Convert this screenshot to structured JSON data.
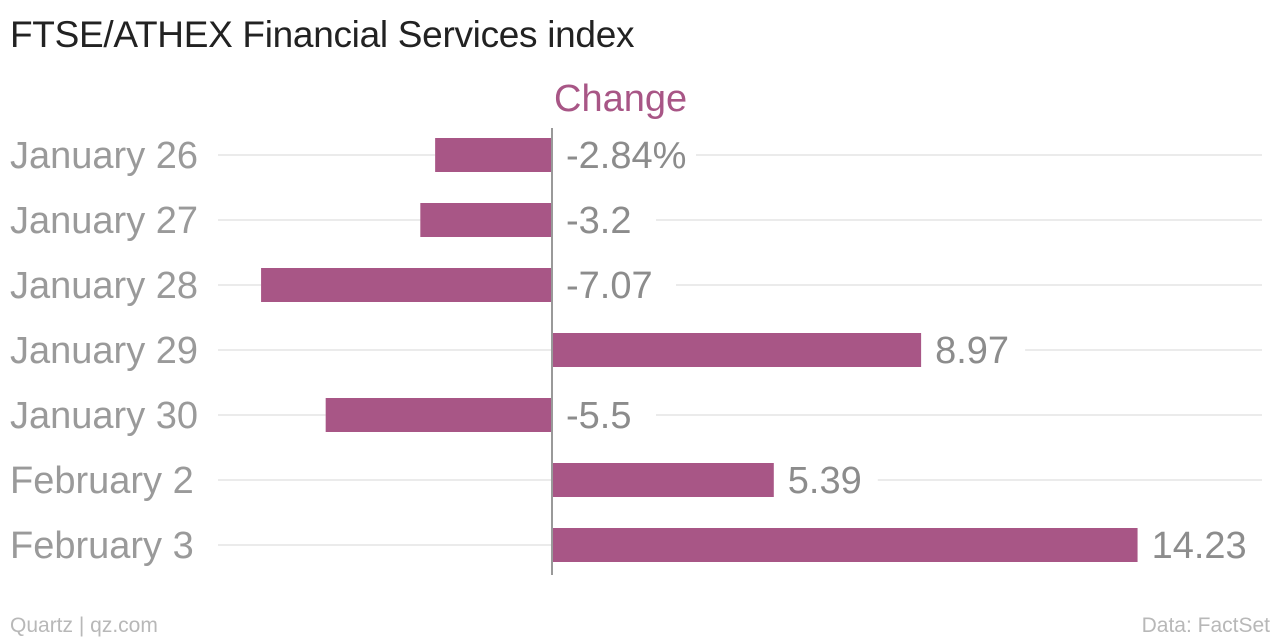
{
  "header": {
    "title": "FTSE/ATHEX Financial Services index"
  },
  "footer": {
    "credit": "Quartz | qz.com",
    "source": "Data: FactSet"
  },
  "colors": {
    "bar": "#a85686",
    "grid": "#ebebeb",
    "axis": "#999999"
  },
  "chart_data": {
    "type": "bar",
    "orientation": "horizontal",
    "categories": [
      "January 26",
      "January 27",
      "January 28",
      "January 29",
      "January 30",
      "February 2",
      "February 3"
    ],
    "series": [
      {
        "name": "Change",
        "values": [
          -2.84,
          -3.2,
          -7.07,
          8.97,
          -5.5,
          5.39,
          14.23
        ]
      }
    ],
    "data_labels": [
      "-2.84%",
      "-3.2",
      "-7.07",
      "8.97",
      "-5.5",
      "5.39",
      "14.23"
    ],
    "xlim": [
      -8,
      14.6
    ],
    "grid": true
  }
}
